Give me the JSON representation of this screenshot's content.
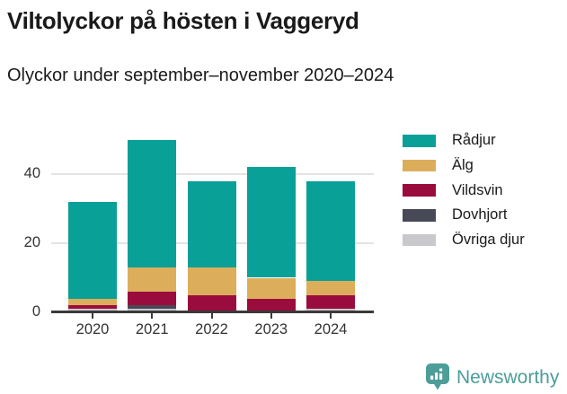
{
  "title": "Viltolyckor på hösten i Vaggeryd",
  "subtitle": "Olyckor under september–november 2020–2024",
  "chart_data": {
    "type": "bar",
    "stacked": true,
    "categories": [
      "2020",
      "2021",
      "2022",
      "2023",
      "2024"
    ],
    "series": [
      {
        "name": "Rådjur",
        "color": "#09a098",
        "values": [
          28,
          37,
          25,
          32,
          29
        ]
      },
      {
        "name": "Älg",
        "color": "#dcae5c",
        "values": [
          2,
          7,
          8,
          6,
          4
        ]
      },
      {
        "name": "Vildsvin",
        "color": "#9b0c3e",
        "values": [
          1,
          4,
          5,
          4,
          4
        ]
      },
      {
        "name": "Dovhjort",
        "color": "#474a56",
        "values": [
          0,
          1,
          0,
          0,
          0
        ]
      },
      {
        "name": "Övriga djur",
        "color": "#c9c9cd",
        "values": [
          1,
          1,
          0,
          0,
          1
        ]
      }
    ],
    "totals": [
      32,
      50,
      38,
      42,
      38
    ],
    "title": "Viltolyckor på hösten i Vaggeryd",
    "xlabel": "",
    "ylabel": "",
    "yticks": [
      0,
      20,
      40
    ],
    "ylim": [
      0,
      52
    ],
    "grid": "horizontal",
    "legend_position": "right",
    "stack_order_bottom_to_top": [
      "Övriga djur",
      "Dovhjort",
      "Vildsvin",
      "Älg",
      "Rådjur"
    ]
  },
  "colors": {
    "grid": "#e3e3e3",
    "axis": "#3a3a3a",
    "tick_text": "#333333",
    "brand": "#4d9d99"
  },
  "branding": {
    "logo_text": "Newsworthy",
    "logo_icon": "bar-chart-speech-bubble-icon"
  }
}
